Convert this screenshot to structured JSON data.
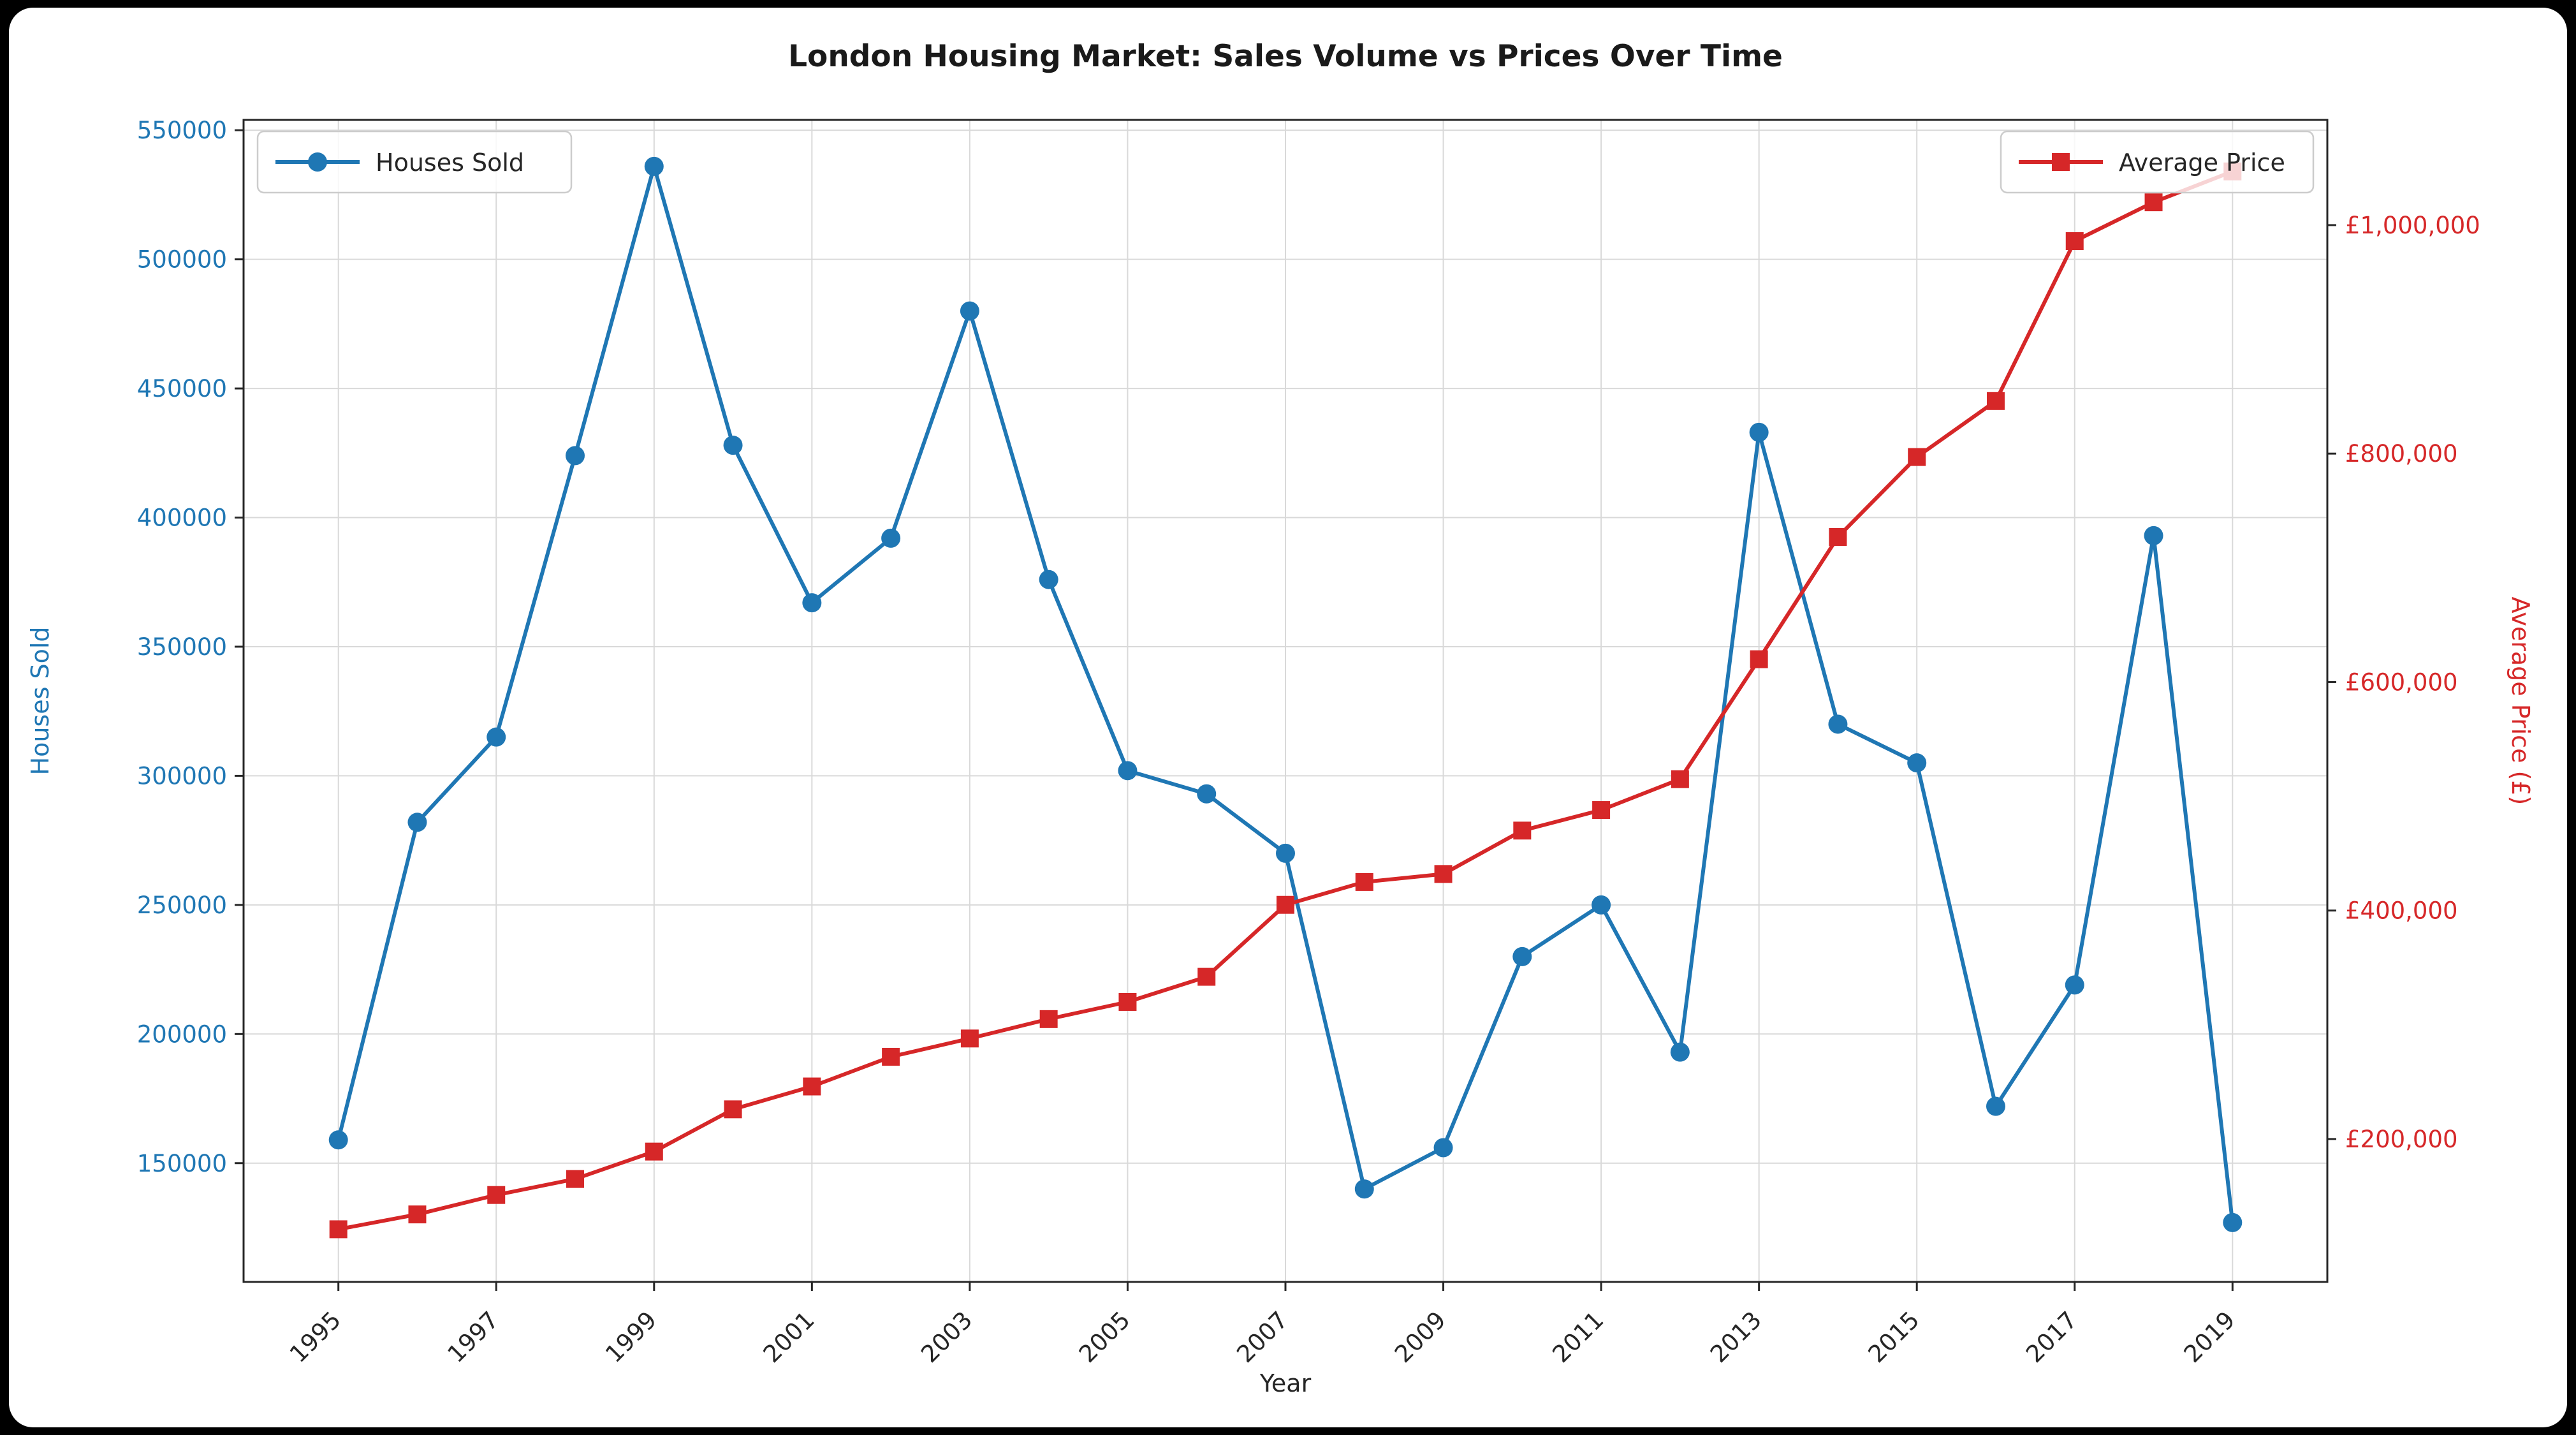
{
  "window": {
    "background_color": "#000000",
    "figure_background": "#ffffff"
  },
  "title": "London Housing Market: Sales Volume vs Prices Over Time",
  "legends": {
    "houses_sold": "Houses Sold",
    "average_price": "Average Price"
  },
  "chart_data": {
    "type": "line",
    "title": "London Housing Market: Sales Volume vs Prices Over Time",
    "xlabel": "Year",
    "ylabel_left": "Houses Sold",
    "ylabel_right": "Average Price (£)",
    "grid": true,
    "x": [
      1995,
      1996,
      1997,
      1998,
      1999,
      2000,
      2001,
      2002,
      2003,
      2004,
      2005,
      2006,
      2007,
      2008,
      2009,
      2010,
      2011,
      2012,
      2013,
      2014,
      2015,
      2016,
      2017,
      2018,
      2019
    ],
    "x_tick_labels": [
      "1995",
      "1997",
      "1999",
      "2001",
      "2003",
      "2005",
      "2007",
      "2009",
      "2011",
      "2013",
      "2015",
      "2017",
      "2019"
    ],
    "series": [
      {
        "name": "Houses Sold",
        "axis": "left",
        "color": "#1f77b4",
        "marker": "circle",
        "values": [
          159000,
          282000,
          315000,
          424000,
          536000,
          428000,
          367000,
          392000,
          480000,
          376000,
          302000,
          293000,
          270000,
          140000,
          156000,
          230000,
          250000,
          193000,
          433000,
          320000,
          305000,
          172000,
          219000,
          393000,
          127000
        ]
      },
      {
        "name": "Average Price",
        "axis": "right",
        "color": "#d62728",
        "marker": "square",
        "values": [
          121000,
          134000,
          151000,
          165000,
          189000,
          226000,
          246000,
          272000,
          288000,
          305000,
          320000,
          342000,
          405000,
          425000,
          432000,
          470000,
          488000,
          515000,
          620000,
          727000,
          797000,
          846000,
          986000,
          1020000,
          1047000
        ]
      }
    ],
    "left_axis": {
      "color": "#1f77b4",
      "ticks": [
        150000,
        200000,
        250000,
        300000,
        350000,
        400000,
        450000,
        500000,
        550000
      ],
      "tick_labels": [
        "150000",
        "200000",
        "250000",
        "300000",
        "350000",
        "400000",
        "450000",
        "500000",
        "550000"
      ],
      "range": [
        104000,
        554000
      ]
    },
    "right_axis": {
      "color": "#d62728",
      "ticks": [
        200000,
        400000,
        600000,
        800000,
        1000000
      ],
      "tick_labels": [
        "£200,000",
        "£400,000",
        "£600,000",
        "£800,000",
        "£1,000,000"
      ],
      "range": [
        74900,
        1092100
      ]
    },
    "legend_position_left": "upper left",
    "legend_position_right": "upper right"
  },
  "style": {
    "grid_color": "#d9d9d9",
    "spine_color": "#262626",
    "title_color": "#1a1a1a",
    "legend_text_color": "#262626",
    "legend_border_color": "#cccccc"
  }
}
